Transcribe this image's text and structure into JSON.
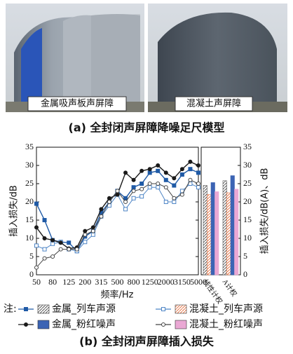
{
  "photos": {
    "left_label": "金属吸声板声屏障",
    "right_label": "混凝土声屏障",
    "caption": "(a) 全封闭声屏障降噪足尺模型"
  },
  "chart_data": {
    "type": "line",
    "caption": "(b) 全封闭声屏障插入损失",
    "xlabel": "频率/Hz",
    "ylabel": "插入损失/dB",
    "y2label": "插入损失/dB(A)、dB",
    "legend_prefix": "注:",
    "categories": [
      "50",
      null,
      "80",
      null,
      "125",
      null,
      "200",
      null,
      "315",
      null,
      "500",
      null,
      "800",
      null,
      "1250",
      null,
      "2000",
      null,
      "3150",
      null,
      "5000"
    ],
    "bar_categories": [
      "线性计权",
      "A计权"
    ],
    "ylim": [
      0,
      35
    ],
    "yticks": [
      0,
      5,
      10,
      15,
      20,
      25,
      30,
      35
    ],
    "y2lim": [
      0,
      35
    ],
    "y2ticks": [
      0,
      5,
      10,
      15,
      20,
      25,
      30,
      35
    ],
    "series": [
      {
        "name": "金属_列车声源",
        "color": "#1f5aa6",
        "marker": "square",
        "bar_color": "#8a8a8a",
        "bar_pattern": "hatch",
        "values": [
          19.5,
          15,
          9.5,
          9,
          8.8,
          6.5,
          10.5,
          12,
          17,
          20,
          23,
          21,
          24,
          25,
          28,
          28.5,
          26,
          24.5,
          27.5,
          29,
          28
        ],
        "bar_values": [
          24.5,
          25.8
        ]
      },
      {
        "name": "混凝土_列车声源",
        "color": "#4f86c6",
        "marker": "open-square",
        "bar_color": "#f2a07c",
        "bar_pattern": "hatch",
        "values": [
          8,
          7,
          8.5,
          9,
          7,
          6.5,
          9,
          11,
          16,
          19,
          22,
          18,
          21,
          21.5,
          24,
          24,
          20,
          20,
          23,
          25,
          24
        ],
        "bar_values": [
          22,
          22.5
        ]
      },
      {
        "name": "金属_粉红噪声",
        "color": "#1a1a1a",
        "marker": "circle",
        "bar_color": "#3c64b4",
        "bar_pattern": "dots",
        "values": [
          13,
          10,
          9.5,
          8.8,
          7.2,
          7.5,
          12,
          13,
          18,
          21,
          22,
          28,
          26,
          28.5,
          29,
          30,
          28,
          26.5,
          29,
          31,
          30
        ],
        "bar_values": [
          25.3,
          27.2
        ]
      },
      {
        "name": "混凝土_粉红噪声",
        "color": "#444444",
        "marker": "open-circle",
        "bar_color": "#eaa8d4",
        "bar_pattern": "solid",
        "values": [
          2,
          4.5,
          5,
          7,
          7,
          7,
          11,
          12,
          16,
          20,
          23,
          20,
          23,
          23.5,
          25,
          25,
          24,
          21,
          22,
          26,
          25
        ],
        "bar_values": [
          22.8,
          23.5
        ]
      }
    ]
  }
}
